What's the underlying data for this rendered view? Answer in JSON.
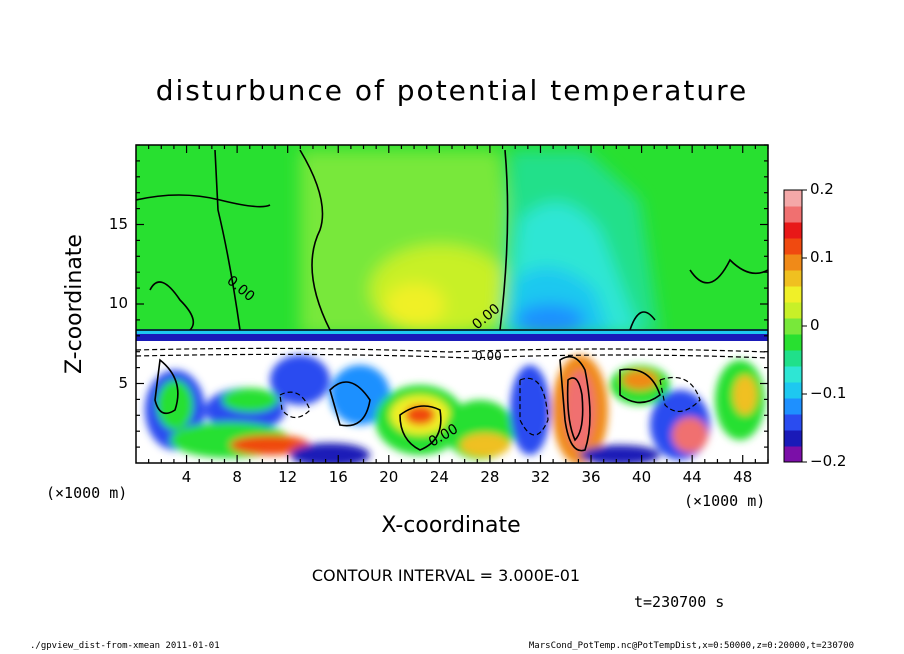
{
  "chart_data": {
    "type": "heatmap",
    "title": "disturbunce of potential temperature",
    "xlabel": "X-coordinate",
    "ylabel": "Z-coordinate",
    "x_unit_left": "(×1000 m)",
    "x_unit_right": "(×1000 m)",
    "xlim": [
      0,
      50
    ],
    "ylim": [
      0,
      20
    ],
    "x_ticks": [
      4,
      8,
      12,
      16,
      20,
      24,
      28,
      32,
      36,
      40,
      44,
      48
    ],
    "y_ticks": [
      5,
      10,
      15
    ],
    "colorbar": {
      "range": [
        -0.2,
        0.2
      ],
      "ticks": [
        "0.2",
        "0.1",
        "0",
        "−0.1",
        "−0.2"
      ],
      "colors": [
        "#7b0fa8",
        "#1a1ab8",
        "#2a4cf0",
        "#1e90ff",
        "#1ec8f0",
        "#2ee6d4",
        "#20e08a",
        "#28e030",
        "#78e83a",
        "#c8f028",
        "#f0f028",
        "#f0c020",
        "#f08a18",
        "#f04a10",
        "#e81818",
        "#f07070",
        "#f4a8a8"
      ]
    },
    "contour_interval_text": "CONTOUR INTERVAL = 3.000E-01",
    "contour_labels": [
      "0.00",
      "0.00",
      "0.00",
      "0.00"
    ],
    "time_text": "t=230700 s",
    "footer_left": "./gpview_dist-from-xmean  2011-01-01",
    "footer_right": "MarsCond_PotTemp.nc@PotTempDist,x=0:50000,z=0:20000,t=230700"
  }
}
